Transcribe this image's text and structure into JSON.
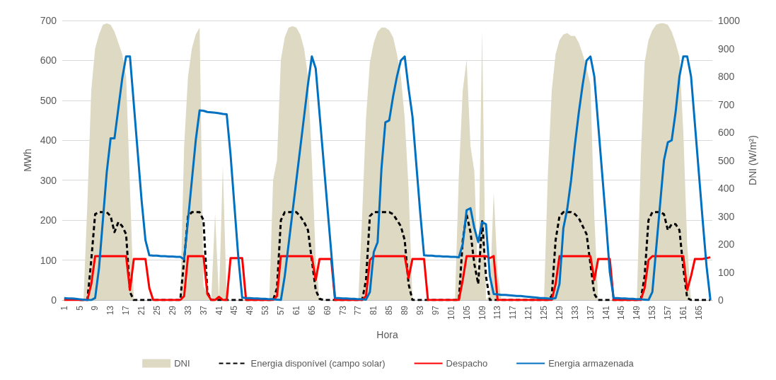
{
  "chart_data": {
    "type": "line",
    "xlabel": "Hora",
    "ylabel": "MWh",
    "y2label": "DNI (W/m²)",
    "categories": [
      "1",
      null,
      null,
      null,
      "5",
      null,
      null,
      null,
      "9",
      null,
      null,
      null,
      "13",
      null,
      null,
      null,
      "17",
      null,
      null,
      null,
      "21",
      null,
      null,
      null,
      "25",
      null,
      null,
      null,
      "29",
      null,
      null,
      null,
      "33",
      null,
      null,
      null,
      "37",
      null,
      null,
      null,
      "41",
      null,
      null,
      null,
      "45",
      null,
      null,
      null,
      "49",
      null,
      null,
      null,
      "53",
      null,
      null,
      null,
      "57",
      null,
      null,
      null,
      "61",
      null,
      null,
      null,
      "65",
      null,
      null,
      null,
      "69",
      null,
      null,
      null,
      "73",
      null,
      null,
      null,
      "77",
      null,
      null,
      null,
      "81",
      null,
      null,
      null,
      "85",
      null,
      null,
      null,
      "89",
      null,
      null,
      null,
      "93",
      null,
      null,
      null,
      "97",
      null,
      null,
      null,
      "101",
      null,
      null,
      null,
      "105",
      null,
      null,
      null,
      "109",
      null,
      null,
      null,
      "113",
      null,
      null,
      null,
      "117",
      null,
      null,
      null,
      "121",
      null,
      null,
      null,
      "125",
      null,
      null,
      null,
      "129",
      null,
      null,
      null,
      "133",
      null,
      null,
      null,
      "137",
      null,
      null,
      null,
      "141",
      null,
      null,
      null,
      "145",
      null,
      null,
      null,
      "149",
      null,
      null,
      null,
      "153",
      null,
      null,
      null,
      "157",
      null,
      null,
      null,
      "161",
      null,
      null,
      null,
      "165",
      null,
      null,
      null
    ],
    "series": [
      {
        "name": "DNI",
        "type": "area",
        "axis": "y2",
        "color": "#ddd9c3",
        "values": [
          0,
          0,
          0,
          0,
          0,
          0,
          350,
          750,
          900,
          950,
          985,
          990,
          985,
          960,
          920,
          880,
          800,
          400,
          0,
          0,
          0,
          0,
          0,
          0,
          0,
          0,
          0,
          0,
          0,
          0,
          0,
          550,
          800,
          900,
          950,
          975,
          50,
          20,
          0,
          310,
          0,
          480,
          0,
          0,
          0,
          0,
          0,
          0,
          0,
          0,
          0,
          0,
          0,
          0,
          430,
          500,
          860,
          940,
          975,
          980,
          975,
          950,
          900,
          800,
          500,
          150,
          0,
          0,
          0,
          0,
          0,
          0,
          0,
          0,
          0,
          0,
          0,
          300,
          650,
          850,
          920,
          960,
          975,
          975,
          965,
          940,
          880,
          800,
          650,
          400,
          0,
          0,
          0,
          0,
          0,
          0,
          0,
          0,
          0,
          0,
          0,
          0,
          450,
          750,
          860,
          550,
          460,
          50,
          965,
          0,
          20,
          385,
          100,
          0,
          0,
          0,
          0,
          0,
          0,
          0,
          0,
          0,
          0,
          0,
          0,
          450,
          750,
          880,
          930,
          950,
          955,
          945,
          945,
          920,
          880,
          830,
          770,
          300,
          0,
          0,
          0,
          0,
          0,
          0,
          0,
          0,
          0,
          0,
          0,
          500,
          850,
          930,
          965,
          985,
          990,
          990,
          985,
          960,
          920,
          870,
          600,
          200,
          0,
          0,
          0,
          0,
          0,
          0
        ]
      },
      {
        "name": "Energia disponível (campo solar)",
        "type": "line",
        "line_style": "dashed",
        "color": "#000000",
        "values": [
          null,
          null,
          null,
          null,
          0,
          0,
          0,
          100,
          215,
          220,
          220,
          220,
          210,
          170,
          195,
          185,
          165,
          20,
          0,
          0,
          0,
          0,
          0,
          0,
          0,
          0,
          0,
          0,
          0,
          0,
          0,
          100,
          210,
          220,
          220,
          220,
          200,
          20,
          0,
          0,
          0,
          0,
          0,
          0,
          0,
          0,
          0,
          0,
          0,
          0,
          0,
          0,
          0,
          0,
          0,
          30,
          200,
          220,
          220,
          220,
          220,
          210,
          195,
          175,
          100,
          25,
          3,
          0,
          0,
          0,
          0,
          0,
          0,
          0,
          0,
          0,
          0,
          0,
          50,
          210,
          220,
          220,
          220,
          220,
          220,
          215,
          200,
          185,
          150,
          40,
          0,
          0,
          0,
          0,
          0,
          0,
          0,
          0,
          0,
          0,
          0,
          0,
          0,
          150,
          214,
          170,
          90,
          40,
          200,
          60,
          0,
          0,
          0,
          0,
          0,
          0,
          0,
          0,
          0,
          0,
          0,
          0,
          0,
          0,
          0,
          0,
          10,
          150,
          210,
          220,
          220,
          220,
          215,
          205,
          185,
          165,
          90,
          15,
          0,
          0,
          0,
          0,
          0,
          0,
          0,
          0,
          0,
          0,
          0,
          0,
          60,
          200,
          220,
          220,
          220,
          215,
          175,
          190,
          190,
          175,
          80,
          5,
          0,
          0,
          0,
          0,
          0,
          0
        ]
      },
      {
        "name": "Despacho",
        "type": "line",
        "line_style": "solid",
        "color": "#ff0000",
        "values": [
          0,
          0,
          0,
          0,
          0,
          0,
          0,
          40,
          110,
          110,
          110,
          110,
          110,
          110,
          110,
          110,
          110,
          25,
          103,
          103,
          103,
          103,
          30,
          0,
          0,
          0,
          0,
          0,
          0,
          0,
          0,
          10,
          110,
          110,
          110,
          110,
          110,
          15,
          0,
          0,
          8,
          0,
          0,
          105,
          105,
          105,
          105,
          0,
          0,
          0,
          0,
          0,
          0,
          0,
          0,
          10,
          110,
          110,
          110,
          110,
          110,
          110,
          110,
          110,
          110,
          50,
          103,
          103,
          103,
          103,
          0,
          0,
          0,
          0,
          0,
          0,
          0,
          0,
          10,
          100,
          110,
          110,
          110,
          110,
          110,
          110,
          110,
          110,
          110,
          55,
          103,
          103,
          103,
          103,
          0,
          0,
          0,
          0,
          0,
          0,
          0,
          0,
          0,
          50,
          110,
          110,
          110,
          110,
          110,
          110,
          105,
          110,
          0,
          0,
          0,
          0,
          0,
          0,
          0,
          0,
          0,
          0,
          0,
          0,
          0,
          0,
          0,
          40,
          110,
          110,
          110,
          110,
          110,
          110,
          110,
          110,
          110,
          50,
          103,
          103,
          103,
          103,
          0,
          0,
          0,
          0,
          0,
          0,
          0,
          0,
          30,
          100,
          110,
          110,
          110,
          110,
          110,
          110,
          110,
          110,
          110,
          25,
          60,
          103,
          103,
          103,
          105,
          107
        ]
      },
      {
        "name": "Energia armazenada",
        "type": "line",
        "line_style": "solid",
        "color": "#0070c0",
        "values": [
          5,
          4,
          4,
          3,
          2,
          1,
          0,
          0,
          5,
          80,
          200,
          320,
          405,
          405,
          480,
          555,
          610,
          610,
          490,
          370,
          250,
          150,
          112,
          111,
          111,
          110,
          110,
          109,
          109,
          108,
          108,
          102,
          200,
          300,
          400,
          475,
          474,
          471,
          470,
          469,
          468,
          466,
          465,
          363,
          235,
          107,
          6,
          5,
          5,
          4,
          4,
          3,
          3,
          2,
          2,
          1,
          0,
          60,
          140,
          220,
          300,
          380,
          460,
          540,
          610,
          580,
          466,
          351,
          236,
          121,
          5,
          5,
          4,
          4,
          3,
          3,
          2,
          2,
          1,
          20,
          120,
          145,
          330,
          445,
          450,
          510,
          560,
          600,
          610,
          530,
          460,
          340,
          220,
          112,
          111,
          111,
          110,
          110,
          109,
          109,
          108,
          108,
          107,
          140,
          225,
          230,
          180,
          145,
          195,
          190,
          60,
          15,
          14,
          13,
          13,
          12,
          11,
          10,
          10,
          9,
          8,
          7,
          6,
          5,
          5,
          4,
          3,
          5,
          40,
          180,
          228,
          300,
          390,
          470,
          540,
          600,
          610,
          560,
          440,
          320,
          200,
          70,
          5,
          5,
          4,
          4,
          3,
          3,
          2,
          2,
          1,
          0,
          20,
          130,
          240,
          350,
          395,
          400,
          470,
          560,
          610,
          610,
          560,
          440,
          320,
          200,
          85,
          0
        ]
      }
    ],
    "ylim": [
      0,
      700
    ],
    "yticks": [
      0,
      100,
      200,
      300,
      400,
      500,
      600,
      700
    ],
    "y2lim": [
      0,
      1000
    ],
    "y2ticks": [
      0,
      100,
      200,
      300,
      400,
      500,
      600,
      700,
      800,
      900,
      {
        "value": 1000,
        "label": "1000"
      }
    ],
    "grid": "y",
    "legend": "bottom",
    "marker": "none"
  }
}
